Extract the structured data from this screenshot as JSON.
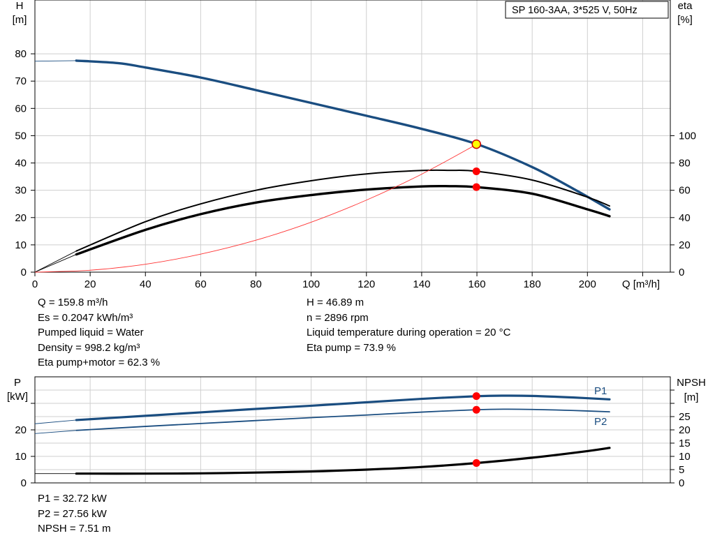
{
  "chart_data": [
    {
      "type": "line",
      "title": "SP 160-3AA, 3*525 V, 50Hz",
      "xlabel": "Q [m³/h]",
      "ylabel_left_name": "H",
      "ylabel_left_unit": "[m]",
      "ylabel_right_name": "eta",
      "ylabel_right_unit": "[%]",
      "xlim": [
        0,
        230
      ],
      "ylim_left": [
        0,
        90
      ],
      "ylim_right": [
        0,
        180
      ],
      "x_ticks": [
        0,
        20,
        40,
        60,
        80,
        100,
        120,
        140,
        160,
        180,
        200
      ],
      "y_left_ticks": [
        0,
        10,
        20,
        30,
        40,
        50,
        60,
        70,
        80
      ],
      "y_right_ticks": [
        0,
        20,
        40,
        60,
        80,
        100
      ],
      "grid": true,
      "series": [
        {
          "key": "head",
          "axis": "left",
          "color": "#1a4d80",
          "x": [
            15,
            30,
            40,
            60,
            80,
            100,
            120,
            140,
            160,
            180,
            195,
            208
          ],
          "values": [
            77.5,
            76.6,
            75.0,
            71.3,
            66.7,
            62.0,
            57.3,
            52.5,
            46.9,
            38.5,
            30.5,
            23.0
          ],
          "ext_x": [
            0,
            15
          ],
          "ext_values": [
            77.3,
            77.5
          ]
        },
        {
          "key": "eta-pump",
          "axis": "right",
          "color": "#000000",
          "x": [
            15,
            40,
            60,
            80,
            100,
            120,
            140,
            150,
            160,
            180,
            200,
            208
          ],
          "values": [
            15.5,
            37.0,
            50.0,
            60.0,
            67.0,
            72.0,
            74.5,
            74.6,
            73.9,
            67.5,
            55.0,
            48.5
          ],
          "ext_x": [
            0,
            15
          ],
          "ext_values": [
            0,
            15.5
          ]
        },
        {
          "key": "eta-pump-motor",
          "axis": "right",
          "color": "#000000",
          "x": [
            15,
            40,
            60,
            80,
            100,
            120,
            140,
            150,
            160,
            180,
            200,
            208
          ],
          "values": [
            13.0,
            31.0,
            42.5,
            51.0,
            56.5,
            60.5,
            62.8,
            63.0,
            62.3,
            57.5,
            46.0,
            41.0
          ],
          "ext_x": [
            0,
            15
          ],
          "ext_values": [
            0,
            13.0
          ]
        },
        {
          "key": "system-curve",
          "axis": "left",
          "color": "#ff3333",
          "x": [
            0,
            20,
            40,
            60,
            80,
            100,
            120,
            140,
            160
          ],
          "values": [
            0,
            0.7,
            2.9,
            6.6,
            11.7,
            18.3,
            26.4,
            35.9,
            46.9
          ]
        }
      ],
      "points": [
        {
          "key": "duty-point",
          "x": 159.8,
          "value": 46.89,
          "axis": "left",
          "fill": "#ffff00",
          "stroke": "#cc0000"
        },
        {
          "key": "eta-pump-point",
          "x": 159.8,
          "value": 73.9,
          "axis": "right",
          "fill": "#ff0000"
        },
        {
          "key": "eta-total-point",
          "x": 159.8,
          "value": 62.3,
          "axis": "right",
          "fill": "#ff0000"
        }
      ]
    },
    {
      "type": "line",
      "ylabel_left_name": "P",
      "ylabel_left_unit": "[kW]",
      "ylabel_right_name": "NPSH",
      "ylabel_right_unit": "[m]",
      "xlim": [
        0,
        230
      ],
      "ylim_left": [
        0,
        40
      ],
      "ylim_right": [
        0,
        40
      ],
      "y_left_ticks": [
        0,
        10,
        20
      ],
      "y_right_ticks": [
        0,
        5,
        10,
        15,
        20,
        25
      ],
      "grid": true,
      "series": [
        {
          "key": "p1",
          "name": "P1",
          "axis": "left",
          "color": "#1a4d80",
          "x": [
            15,
            40,
            60,
            80,
            100,
            120,
            140,
            160,
            170,
            180,
            195,
            208
          ],
          "values": [
            23.7,
            25.3,
            26.6,
            27.9,
            29.1,
            30.4,
            31.7,
            32.7,
            32.9,
            32.8,
            32.2,
            31.5
          ],
          "ext_x": [
            0,
            15
          ],
          "ext_values": [
            22.3,
            23.7
          ]
        },
        {
          "key": "p2",
          "name": "P2",
          "axis": "left",
          "color": "#1a4d80",
          "x": [
            15,
            40,
            60,
            80,
            100,
            120,
            140,
            160,
            170,
            180,
            195,
            208
          ],
          "values": [
            19.8,
            21.3,
            22.4,
            23.5,
            24.6,
            25.6,
            26.7,
            27.6,
            27.8,
            27.7,
            27.3,
            26.8
          ],
          "ext_x": [
            0,
            15
          ],
          "ext_values": [
            18.6,
            19.8
          ]
        },
        {
          "key": "npsh",
          "axis": "right",
          "color": "#000000",
          "x": [
            15,
            40,
            60,
            80,
            100,
            120,
            140,
            160,
            180,
            200,
            208
          ],
          "values": [
            3.5,
            3.5,
            3.6,
            3.9,
            4.3,
            5.0,
            6.0,
            7.5,
            9.5,
            12.0,
            13.2
          ],
          "ext_x": [
            0,
            15
          ],
          "ext_values": [
            3.5,
            3.5
          ]
        }
      ],
      "points": [
        {
          "key": "p1-point",
          "x": 159.8,
          "value": 32.72,
          "axis": "left",
          "fill": "#ff0000"
        },
        {
          "key": "p2-point",
          "x": 159.8,
          "value": 27.56,
          "axis": "left",
          "fill": "#ff0000"
        },
        {
          "key": "npsh-point",
          "x": 159.8,
          "value": 7.51,
          "axis": "right",
          "fill": "#ff0000"
        }
      ]
    }
  ],
  "readouts_top_left": [
    "Q = 159.8 m³/h",
    "Es = 0.2047 kWh/m³",
    "Pumped liquid = Water",
    "Density = 998.2 kg/m³",
    "Eta pump+motor = 62.3 %"
  ],
  "readouts_top_right": [
    "H = 46.89 m",
    "n = 2896 rpm",
    "Liquid temperature during operation = 20 °C",
    "Eta pump = 73.9 %"
  ],
  "readouts_bottom": [
    "P1 = 32.72 kW",
    "P2 = 27.56 kW",
    "NPSH = 7.51 m"
  ]
}
